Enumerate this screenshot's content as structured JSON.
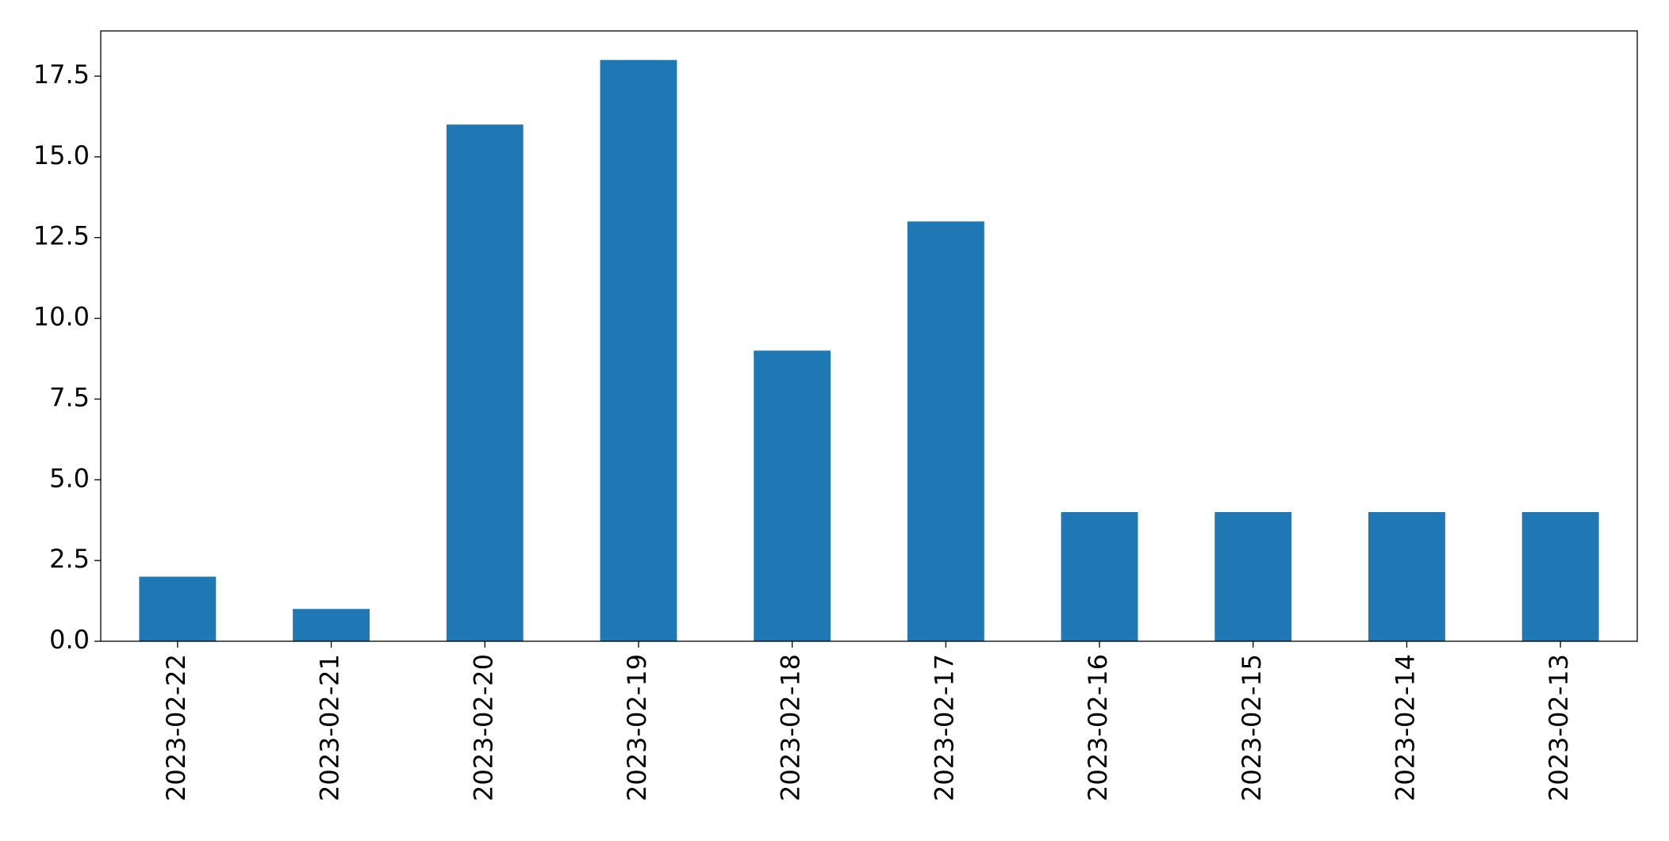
{
  "chart_data": {
    "type": "bar",
    "categories": [
      "2023-02-22",
      "2023-02-21",
      "2023-02-20",
      "2023-02-19",
      "2023-02-18",
      "2023-02-17",
      "2023-02-16",
      "2023-02-15",
      "2023-02-14",
      "2023-02-13"
    ],
    "values": [
      2,
      1,
      16,
      18,
      9,
      13,
      4,
      4,
      4,
      4
    ],
    "color": "#1f77b4",
    "ylim": [
      0,
      18.9
    ],
    "yticks": [
      {
        "value": 0,
        "label": "0.0"
      },
      2.5,
      {
        "value": 5,
        "label": "5.0"
      },
      7.5,
      {
        "value": 10,
        "label": "10.0"
      },
      12.5,
      {
        "value": 15,
        "label": "15.0"
      },
      17.5
    ],
    "grid": false
  }
}
